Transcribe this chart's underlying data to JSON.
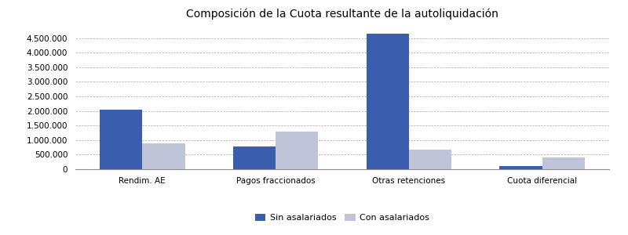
{
  "title": "Composición de la Cuota resultante de la autoliquidación",
  "categories": [
    "Rendim. AE",
    "Pagos fraccionados",
    "Otras retenciones",
    "Cuota diferencial"
  ],
  "sin_asalariados": [
    2050000,
    780000,
    4650000,
    100000
  ],
  "con_asalariados": [
    880000,
    1300000,
    680000,
    390000
  ],
  "color_sin": "#3A5DAE",
  "color_con": "#C0C4D8",
  "legend_sin": "Sin asalariados",
  "legend_con": "Con asalariados",
  "ylim": [
    0,
    5000000
  ],
  "yticks": [
    0,
    500000,
    1000000,
    1500000,
    2000000,
    2500000,
    3000000,
    3500000,
    4000000,
    4500000
  ],
  "background_color": "#FFFFFF",
  "grid_color": "#AAAAAA",
  "bar_width": 0.32,
  "title_fontsize": 10,
  "tick_fontsize": 7.5,
  "legend_fontsize": 8
}
